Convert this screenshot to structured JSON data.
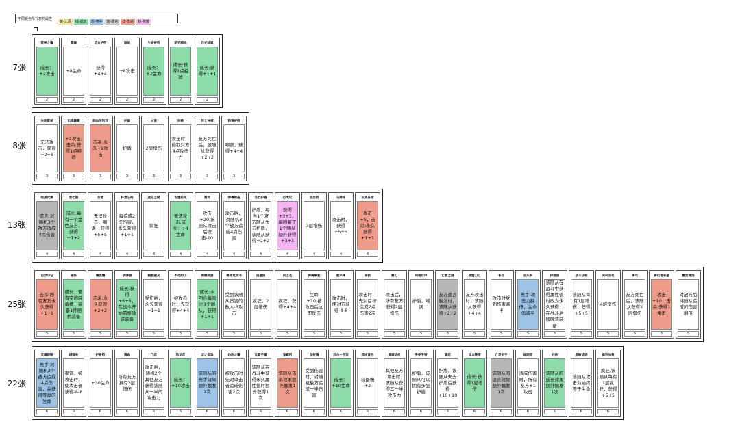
{
  "legend": {
    "prefix": "不同颜色所代表的属性：",
    "items": [
      {
        "label": "黄-入场",
        "color": "#efe6a0"
      },
      {
        "label": "绿-成长",
        "color": "#8fdcab"
      },
      {
        "label": "蓝-亮手",
        "color": "#9cc4e4"
      },
      {
        "label": "灰-遗言",
        "color": "#c8c8c8"
      },
      {
        "label": "红-击杀",
        "color": "#f0a090"
      },
      {
        "label": "粉-附着",
        "color": "#f2b8f0"
      }
    ]
  },
  "colors": {
    "green": "#8fdcab",
    "red": "#ef9b89",
    "gray": "#b7b7b7",
    "blue": "#9dc3e6",
    "pink": "#f4b6f2",
    "white": "#ffffff"
  },
  "rows": [
    {
      "label": "7张",
      "cards": [
        {
          "name": "死神之镰",
          "desc": "成长：+2攻击",
          "cost": "2",
          "color": "green"
        },
        {
          "name": "圆盾",
          "desc": "+8生命",
          "cost": "2",
          "color": "white"
        },
        {
          "name": "活力护符",
          "desc": "获得+4+4",
          "cost": "2",
          "color": "white"
        },
        {
          "name": "短剑",
          "desc": "+8攻击",
          "cost": "2",
          "color": "white"
        },
        {
          "name": "生命护符",
          "desc": "成长：+2生命",
          "cost": "2",
          "color": "green"
        },
        {
          "name": "研究图纸",
          "desc": "成长:获得1点经验",
          "cost": "2",
          "color": "green"
        },
        {
          "name": "月光法典",
          "desc": "成长:获得+1+1",
          "cost": "2",
          "color": "green"
        }
      ]
    },
    {
      "label": "8张",
      "cards": [
        {
          "name": "尖刺壁垒",
          "desc": "无法攻击，获得+2+8",
          "cost": "3",
          "color": "white"
        },
        {
          "name": "饥渴藤鞭",
          "desc": "+4攻击,击杀:获得1点经验",
          "cost": "3",
          "color": "red"
        },
        {
          "name": "刺血牙利斧",
          "desc": "击杀:永久+2攻击",
          "cost": "3",
          "color": "red"
        },
        {
          "name": "护盾",
          "desc": "护盾",
          "cost": "3",
          "color": "white"
        },
        {
          "name": "火苗",
          "desc": "2层增伤",
          "cost": "3",
          "color": "white"
        },
        {
          "name": "扫帚",
          "desc": "攻击时，偷取对方4点攻击力",
          "cost": "3",
          "color": "white"
        },
        {
          "name": "死亡钟摆",
          "desc": "友方死亡后，该随从获得+2+2",
          "cost": "3",
          "color": "white"
        },
        {
          "name": "狗语护符",
          "desc": "嘲讽，获得+4+4",
          "cost": "3",
          "color": "white"
        }
      ]
    },
    {
      "label": "13张",
      "cards": [
        {
          "name": "暗黑咒弹",
          "desc": "遗言:对随机3个敌方造成4点伤害",
          "cost": "4",
          "color": "gray"
        },
        {
          "name": "金七器",
          "desc": "成长:每有一个金色友方，获得+1+2",
          "cost": "4",
          "color": "green"
        },
        {
          "name": "巨墙",
          "desc": "无法攻击，嘲讽，获得+5+5",
          "cost": "4",
          "color": "white"
        },
        {
          "name": "朴素法袍",
          "desc": "每造成2次伤害，永久获得+1+1",
          "cost": "4",
          "color": "white"
        },
        {
          "name": "迷茫之靴",
          "desc": "疯狂",
          "cost": "4",
          "color": "white"
        },
        {
          "name": "古惺符文",
          "desc": "无法攻击,成长：+4生命",
          "cost": "4",
          "color": "green"
        },
        {
          "name": "重斧",
          "desc": "攻击+20,该随从攻击后攻击-10",
          "cost": "4",
          "color": "white"
        },
        {
          "name": "弹幕射击",
          "desc": "攻击后，对随机3个敌方造成4点伤害",
          "cost": "4",
          "color": "white"
        },
        {
          "name": "法力护盾",
          "desc": "护盾，每当1个友方随从失去护盾，该随从获得+2+2",
          "cost": "4",
          "color": "white"
        },
        {
          "name": "巨大化",
          "desc": "获得+3+3，每附着了1个随从额外获得+3+3",
          "cost": "4",
          "color": "pink"
        },
        {
          "name": "流血箭",
          "desc": "3层增伤",
          "cost": "4",
          "color": "white"
        },
        {
          "name": "马蹄铁",
          "desc": "攻击时，获得+5+5",
          "cost": "4",
          "color": "white"
        },
        {
          "name": "玩具长枪",
          "desc": "攻击+5，击杀:永久获得+1+1",
          "cost": "4",
          "color": "red"
        }
      ]
    },
    {
      "label": "25张",
      "cards": [
        {
          "name": "自然印记",
          "desc": "击杀:所有友方永久获得+1+1",
          "cost": "5",
          "color": "red"
        },
        {
          "name": "磁铁",
          "desc": "成长：若有空的装备槽，装备1件随机装备",
          "cost": "5",
          "color": "green"
        },
        {
          "name": "嗜血镰",
          "desc": "击杀:永久获得+2+2",
          "cost": "5",
          "color": "red"
        },
        {
          "name": "防弹器",
          "desc": "成长:获得+6+6，在战斗开始前移除该装备",
          "cost": "5",
          "color": "green"
        },
        {
          "name": "幽能披光",
          "desc": "受伤后，永久获得+1+1",
          "cost": "5",
          "color": "white"
        },
        {
          "name": "不动如山",
          "desc": "被攻击时，先获得+4+4",
          "cost": "5",
          "color": "white"
        },
        {
          "name": "荆棘武器",
          "desc": "成长:本回合每卖出1个随从，获得+1+1",
          "cost": "5",
          "color": "green"
        },
        {
          "name": "寒冰咒文书",
          "desc": "受到该随从伤害的敌人-3攻击",
          "cost": "5",
          "color": "white"
        },
        {
          "name": "流星锤",
          "desc": "疯狂，2层增伤",
          "cost": "5",
          "color": "white"
        },
        {
          "name": "风之石",
          "desc": "疯狂，获得+4+4",
          "cost": "5",
          "color": "white"
        },
        {
          "name": "弹簧拳套",
          "desc": "生命+10,被攻击后立即反击",
          "cost": "5",
          "color": "white"
        },
        {
          "name": "鹿术棒",
          "desc": "攻击时，使对方获得-8-8",
          "cost": "5",
          "color": "white"
        },
        {
          "name": "骑箭",
          "desc": "攻击时，先对目标造成2点伤害2次",
          "cost": "5",
          "color": "white"
        },
        {
          "name": "雷刃",
          "desc": "攻击后，所有友方获得2层增伤",
          "cost": "5",
          "color": "white"
        },
        {
          "name": "阿塔巨甲",
          "desc": "护盾，嘲讽",
          "cost": "5",
          "color": "white"
        },
        {
          "name": "亡者之器",
          "desc": "友方遗言触发时，该随从获得+2+2",
          "cost": "5",
          "color": "gray"
        },
        {
          "name": "恶魔刀刃",
          "desc": "友方攻击时，该随从获得+4+4",
          "cost": "5",
          "color": "white"
        },
        {
          "name": "长弓",
          "desc": "攻击时受到伤害减半",
          "cost": "5",
          "color": "white"
        },
        {
          "name": "双头剑",
          "desc": "亮手:攻击力翻倍，生命值减半",
          "cost": "5",
          "color": "blue"
        },
        {
          "name": "捍猎器",
          "desc": "该随从在战斗中获得属性值时改为永久获得，在战斗后移除该装备",
          "cost": "5",
          "color": "white"
        },
        {
          "name": "战斗法杖",
          "desc": "该随从每有1层增伤，获得+5+5",
          "cost": "5",
          "color": "white"
        },
        {
          "name": "尖刺羽毛",
          "desc": "4层增伤",
          "cost": "5",
          "color": "white"
        },
        {
          "name": "弹弓",
          "desc": "友方死亡后，该随从获得2层增伤",
          "cost": "5",
          "color": "white"
        },
        {
          "name": "寄行者手套",
          "desc": "攻击+10，击杀:获得1金币",
          "cost": "5",
          "color": "red"
        },
        {
          "name": "重型弩炮",
          "desc": "对敌方后排随从造成的伤害翻倍",
          "cost": "5",
          "color": "white"
        }
      ]
    },
    {
      "label": "22张",
      "cards": [
        {
          "name": "灵魂锁链",
          "desc": "亮手:对随机3个敌方造成4点伤害，并获得等量的生命",
          "cost": "6",
          "color": "blue"
        },
        {
          "name": "捕猎夹",
          "desc": "嘲讽，被攻击时，使攻击者获得-8-8",
          "cost": "6",
          "color": "white"
        },
        {
          "name": "护身符",
          "desc": "+30生命",
          "cost": "6",
          "color": "white"
        },
        {
          "name": "赛角",
          "desc": "所有友方具有2层增伤",
          "cost": "6",
          "color": "white"
        },
        {
          "name": "飞斧",
          "desc": "攻击后，随机2个其他友方获得该随从一半的攻击力",
          "cost": "6",
          "color": "white"
        },
        {
          "name": "斩龙斧",
          "desc": "成长：+10攻击",
          "cost": "6",
          "color": "green"
        },
        {
          "name": "龙之宝珠",
          "desc": "该随从的亮手效果额外触发1次",
          "cost": "6",
          "color": "blue"
        },
        {
          "name": "灼热斗篷",
          "desc": "被攻击时先对攻击者造成伤害2次",
          "cost": "6",
          "color": "white"
        },
        {
          "name": "元素手镯",
          "desc": "该随从在战斗中获得永久属性值时额外获得1次",
          "cost": "6",
          "color": "white"
        },
        {
          "name": "鬼螺符",
          "desc": "该随从击杀效果额外触发1次",
          "cost": "6",
          "color": "red"
        },
        {
          "name": "反射镜",
          "desc": "受到伤害时，对随机敌方造成一半伤害",
          "cost": "6",
          "color": "white"
        },
        {
          "name": "远古十字架",
          "desc": "成长：+10生命",
          "cost": "6",
          "color": "green"
        },
        {
          "name": "猎皮背包",
          "desc": "装备槽+2",
          "cost": "6",
          "color": "white"
        },
        {
          "name": "尾骑法杖",
          "desc": "其他友方攻击时,该随从获得其一半攻击力",
          "cost": "6",
          "color": "white"
        },
        {
          "name": "天使手铐",
          "desc": "护盾，该随从可以拥有多层护盾",
          "cost": "6",
          "color": "white"
        },
        {
          "name": "满月",
          "desc": "护盾，该随从失去护盾后获得+10+10",
          "cost": "6",
          "color": "white"
        },
        {
          "name": "法力腰带",
          "desc": "成长:获得1层增伤",
          "cost": "6",
          "color": "green"
        },
        {
          "name": "亡灵折手",
          "desc": "该随从的遗言效果额外触发1次",
          "cost": "6",
          "color": "gray"
        },
        {
          "name": "规网斧",
          "desc": "造成伤害时，所有友方+1攻击",
          "cost": "6",
          "color": "white"
        },
        {
          "name": "纤表",
          "desc": "该随从的成长效果额外触发1次",
          "cost": "6",
          "color": "green"
        },
        {
          "name": "屋敏法则",
          "desc": "该随从攻击力始终等于生命",
          "cost": "6",
          "color": "white"
        },
        {
          "name": "疯狂头骨",
          "desc": "疯狂,该随从每有1层疯狂，获得+5+5",
          "cost": "6",
          "color": "white"
        }
      ]
    }
  ]
}
